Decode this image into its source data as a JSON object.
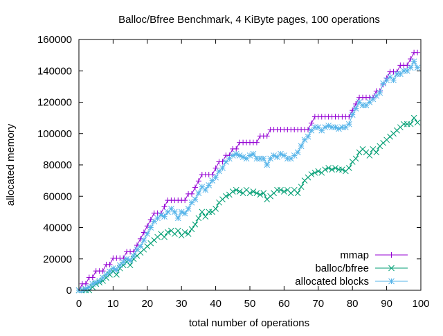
{
  "chart_data": {
    "type": "line",
    "title": "Balloc/Bfree Benchmark, 4 KiByte pages, 100 operations",
    "xlabel": "total number of operations",
    "ylabel": "allocated memory",
    "xlim": [
      0,
      100
    ],
    "ylim": [
      0,
      160000
    ],
    "xticks": [
      0,
      10,
      20,
      30,
      40,
      50,
      60,
      70,
      80,
      90,
      100
    ],
    "yticks": [
      0,
      20000,
      40000,
      60000,
      80000,
      100000,
      120000,
      140000,
      160000
    ],
    "legend_position": "bottom-right",
    "grid": false,
    "series": [
      {
        "name": "mmap",
        "color": "#9400d3",
        "marker": "plus",
        "x": [
          0,
          1,
          2,
          3,
          4,
          5,
          6,
          7,
          8,
          9,
          10,
          11,
          12,
          13,
          14,
          15,
          16,
          17,
          18,
          19,
          20,
          21,
          22,
          23,
          24,
          25,
          26,
          27,
          28,
          29,
          30,
          31,
          32,
          33,
          34,
          35,
          36,
          37,
          38,
          39,
          40,
          41,
          42,
          43,
          44,
          45,
          46,
          47,
          48,
          49,
          50,
          51,
          52,
          53,
          54,
          55,
          56,
          57,
          58,
          59,
          60,
          61,
          62,
          63,
          64,
          65,
          66,
          67,
          68,
          69,
          70,
          71,
          72,
          73,
          74,
          75,
          76,
          77,
          78,
          79,
          80,
          81,
          82,
          83,
          84,
          85,
          86,
          87,
          88,
          89,
          90,
          91,
          92,
          93,
          94,
          95,
          96,
          97,
          98,
          99
        ],
        "values": [
          0,
          4100,
          4100,
          8200,
          8200,
          12300,
          12300,
          12300,
          16400,
          16400,
          20500,
          20500,
          20500,
          20500,
          24600,
          24600,
          24600,
          28700,
          32800,
          36900,
          41000,
          45100,
          49200,
          49200,
          49200,
          53300,
          57400,
          57400,
          57400,
          57400,
          57400,
          57400,
          61500,
          61500,
          65600,
          69700,
          73800,
          73800,
          73800,
          73800,
          77900,
          82000,
          82000,
          86100,
          86100,
          90200,
          90200,
          94300,
          94300,
          94300,
          94300,
          94300,
          94300,
          98400,
          98400,
          98400,
          102500,
          102500,
          102500,
          102500,
          102500,
          102500,
          102500,
          102500,
          102500,
          102500,
          102500,
          102500,
          106600,
          110700,
          110700,
          110700,
          110700,
          110700,
          110700,
          110700,
          110700,
          110700,
          110700,
          110700,
          114800,
          118900,
          123000,
          123000,
          123000,
          123000,
          123000,
          127100,
          127100,
          131200,
          135300,
          139400,
          139400,
          139400,
          143500,
          143500,
          143500,
          147600,
          151700,
          151700
        ]
      },
      {
        "name": "balloc/bfree",
        "color": "#009e73",
        "marker": "cross",
        "x": [
          0,
          1,
          2,
          3,
          4,
          5,
          6,
          7,
          8,
          9,
          10,
          11,
          12,
          13,
          14,
          15,
          16,
          17,
          18,
          19,
          20,
          21,
          22,
          23,
          24,
          25,
          26,
          27,
          28,
          29,
          30,
          31,
          32,
          33,
          34,
          35,
          36,
          37,
          38,
          39,
          40,
          41,
          42,
          43,
          44,
          45,
          46,
          47,
          48,
          49,
          50,
          51,
          52,
          53,
          54,
          55,
          56,
          57,
          58,
          59,
          60,
          61,
          62,
          63,
          64,
          65,
          66,
          67,
          68,
          69,
          70,
          71,
          72,
          73,
          74,
          75,
          76,
          77,
          78,
          79,
          80,
          81,
          82,
          83,
          84,
          85,
          86,
          87,
          88,
          89,
          90,
          91,
          92,
          93,
          94,
          95,
          96,
          97,
          98,
          99
        ],
        "values": [
          0,
          0,
          0,
          0,
          2000,
          4000,
          5000,
          6000,
          8000,
          10000,
          12000,
          10000,
          14000,
          16000,
          18000,
          16000,
          20000,
          22000,
          24000,
          26000,
          28000,
          30000,
          32000,
          34000,
          36000,
          34000,
          37000,
          38000,
          36000,
          38000,
          35000,
          37000,
          36000,
          39000,
          42000,
          46000,
          50000,
          47000,
          50000,
          50000,
          52000,
          56000,
          58000,
          60000,
          61000,
          63000,
          64000,
          63000,
          62000,
          64000,
          62000,
          63000,
          62000,
          61000,
          62000,
          58000,
          60000,
          62000,
          64000,
          64000,
          63000,
          64000,
          62000,
          64000,
          62000,
          66000,
          70000,
          72000,
          74000,
          75000,
          76000,
          75000,
          77000,
          78000,
          77000,
          78000,
          77000,
          77000,
          76000,
          78000,
          82000,
          84000,
          88000,
          90000,
          88000,
          86000,
          90000,
          88000,
          92000,
          94000,
          96000,
          98000,
          100000,
          102000,
          104000,
          106000,
          106000,
          106000,
          110000,
          107000
        ]
      },
      {
        "name": "allocated blocks",
        "color": "#56b4e9",
        "marker": "star",
        "x": [
          0,
          1,
          2,
          3,
          4,
          5,
          6,
          7,
          8,
          9,
          10,
          11,
          12,
          13,
          14,
          15,
          16,
          17,
          18,
          19,
          20,
          21,
          22,
          23,
          24,
          25,
          26,
          27,
          28,
          29,
          30,
          31,
          32,
          33,
          34,
          35,
          36,
          37,
          38,
          39,
          40,
          41,
          42,
          43,
          44,
          45,
          46,
          47,
          48,
          49,
          50,
          51,
          52,
          53,
          54,
          55,
          56,
          57,
          58,
          59,
          60,
          61,
          62,
          63,
          64,
          65,
          66,
          67,
          68,
          69,
          70,
          71,
          72,
          73,
          74,
          75,
          76,
          77,
          78,
          79,
          80,
          81,
          82,
          83,
          84,
          85,
          86,
          87,
          88,
          89,
          90,
          91,
          92,
          93,
          94,
          95,
          96,
          97,
          98,
          99
        ],
        "values": [
          0,
          0,
          1000,
          2000,
          4000,
          5000,
          6000,
          8000,
          10000,
          12000,
          14000,
          13000,
          16000,
          18000,
          20000,
          19000,
          22000,
          26000,
          28000,
          32000,
          36000,
          40000,
          44000,
          46000,
          48000,
          47000,
          50000,
          52000,
          50000,
          46000,
          50000,
          49000,
          52000,
          56000,
          58000,
          62000,
          66000,
          64000,
          67000,
          70000,
          72000,
          76000,
          78000,
          82000,
          84000,
          86000,
          87000,
          86000,
          85000,
          84000,
          86000,
          87000,
          84000,
          84000,
          84000,
          80000,
          84000,
          86000,
          85000,
          87000,
          86000,
          84000,
          84000,
          86000,
          88000,
          92000,
          96000,
          98000,
          102000,
          104000,
          104000,
          102000,
          104000,
          105000,
          104000,
          104000,
          103000,
          104000,
          104000,
          106000,
          112000,
          116000,
          120000,
          118000,
          118000,
          120000,
          122000,
          124000,
          126000,
          132000,
          134000,
          136000,
          134000,
          138000,
          138000,
          140000,
          140000,
          142000,
          146000,
          142000
        ]
      }
    ]
  }
}
